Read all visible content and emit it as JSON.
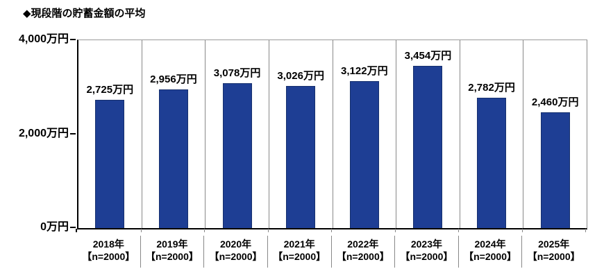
{
  "title": "◆現段階の貯蓄金額の平均",
  "chart_data": {
    "type": "bar",
    "title": "◆現段階の貯蓄金額の平均",
    "categories": [
      "2018年",
      "2019年",
      "2020年",
      "2021年",
      "2022年",
      "2023年",
      "2024年",
      "2025年"
    ],
    "sample_labels": [
      "【n=2000】",
      "【n=2000】",
      "【n=2000】",
      "【n=2000】",
      "【n=2000】",
      "【n=2000】",
      "【n=2000】",
      "【n=2000】"
    ],
    "values": [
      2725,
      2956,
      3078,
      3026,
      3122,
      3454,
      2782,
      2460
    ],
    "value_labels": [
      "2,725万円",
      "2,956万円",
      "3,078万円",
      "3,026万円",
      "3,122万円",
      "3,454万円",
      "2,782万円",
      "2,460万円"
    ],
    "unit": "万円",
    "ylim": [
      0,
      4000
    ],
    "yticks": [
      {
        "value": 0,
        "label": "0万円"
      },
      {
        "value": 2000,
        "label": "2,000万円"
      },
      {
        "value": 4000,
        "label": "4,000万円"
      }
    ],
    "grid": false,
    "legend": "none"
  },
  "colors": {
    "bar_fill": "#1e3e94",
    "bar_border": "#16306e",
    "separator": "#888888",
    "axis": "#000000",
    "background": "#ffffff",
    "text": "#000000"
  }
}
